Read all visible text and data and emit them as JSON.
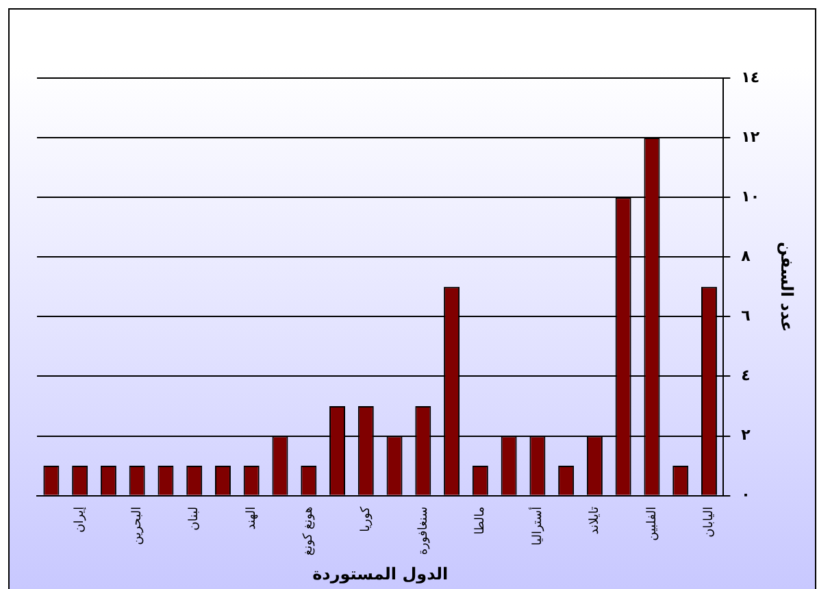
{
  "chart_data": {
    "type": "bar",
    "xlabel": "الدول المستوردة",
    "ylabel": "عدد السفن",
    "categories": [
      null,
      "إيران",
      null,
      "البحرين",
      null,
      "لبنان",
      null,
      "الهند",
      null,
      "هونغ كونغ",
      null,
      "كوريا",
      null,
      "سنغافورة",
      null,
      "مالطا",
      null,
      "أستراليا",
      null,
      "تايلاند",
      null,
      "الفلبين",
      null,
      "اليابان"
    ],
    "values": [
      1,
      1,
      1,
      1,
      1,
      1,
      1,
      1,
      2,
      1,
      3,
      3,
      2,
      3,
      7,
      1,
      2,
      2,
      1,
      2,
      10,
      12,
      1,
      7
    ],
    "color": "#800000",
    "ylim": [
      0,
      14
    ],
    "yticks": [
      {
        "value": 0,
        "label": "٠"
      },
      {
        "value": 2,
        "label": "٢"
      },
      {
        "value": 4,
        "label": "٤"
      },
      {
        "value": 6,
        "label": "٦"
      },
      {
        "value": 8,
        "label": "٨"
      },
      {
        "value": 10,
        "label": "١٠"
      },
      {
        "value": 12,
        "label": "١٢"
      },
      {
        "value": 14,
        "label": "١٤"
      }
    ],
    "grid": "y",
    "legend": false
  }
}
